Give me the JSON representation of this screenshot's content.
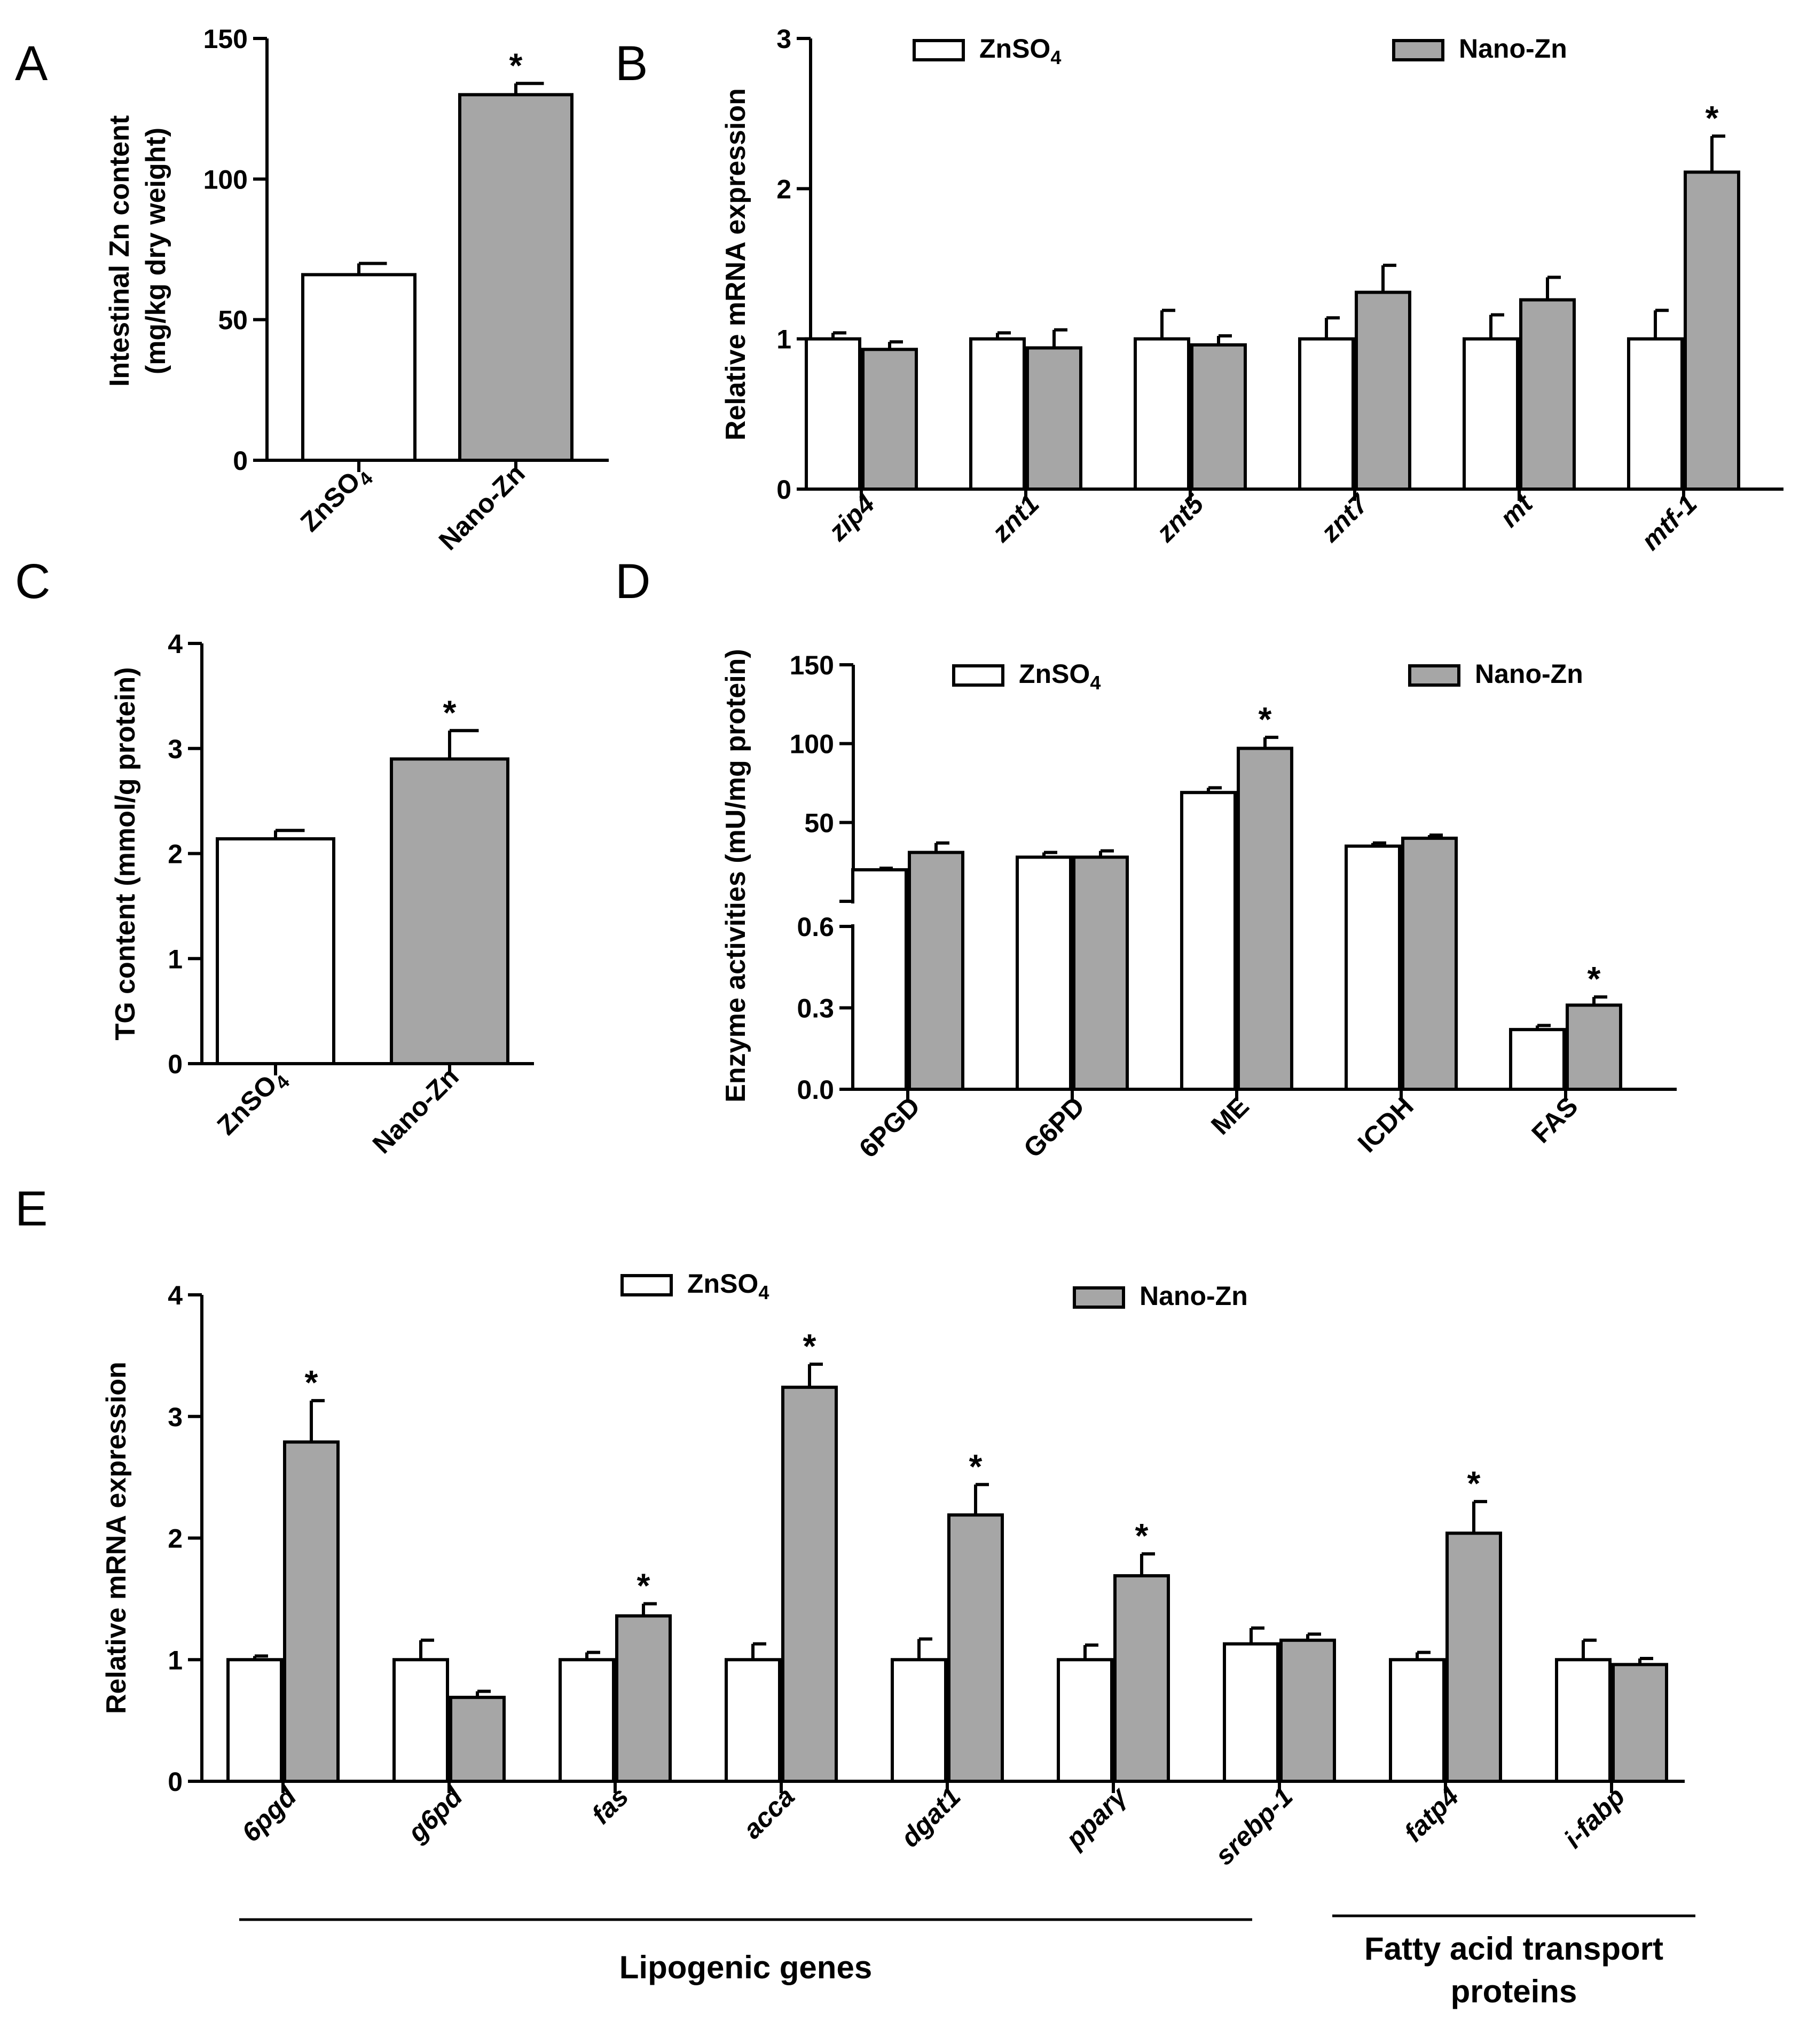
{
  "panels": [
    {
      "id": "A",
      "letter": "A",
      "type": "bar",
      "ylabel_lines": [
        "Intestinal Zn content",
        "(mg/kg dry weight)"
      ],
      "ylim": [
        0,
        150
      ],
      "yticks": [
        "0",
        "50",
        "100",
        "150"
      ],
      "categories": [
        "ZnSO4",
        "Nano-Zn"
      ],
      "category_colors": [
        "#ffffff",
        "#a6a6a6"
      ],
      "values": [
        66,
        130
      ],
      "errors": [
        4,
        4
      ],
      "significant": [
        false,
        true
      ],
      "star": "*"
    },
    {
      "id": "B",
      "letter": "B",
      "type": "bar",
      "ylabel": "Relative mRNA expression",
      "ylim": [
        0,
        3
      ],
      "yticks": [
        "0",
        "1",
        "2",
        "3"
      ],
      "categories": [
        "zip4",
        "znt1",
        "znt5",
        "znt7",
        "mt",
        "mtf-1"
      ],
      "legend": [
        "ZnSO4",
        "Nano-Zn"
      ],
      "series": [
        {
          "name": "ZnSO4",
          "color": "#ffffff",
          "values": [
            1.0,
            1.0,
            1.0,
            1.0,
            1.0,
            1.0
          ],
          "errors": [
            0.04,
            0.04,
            0.19,
            0.14,
            0.16,
            0.19
          ],
          "significant": [
            false,
            false,
            false,
            false,
            false,
            false
          ]
        },
        {
          "name": "Nano-Zn",
          "color": "#a6a6a6",
          "values": [
            0.93,
            0.94,
            0.96,
            1.31,
            1.26,
            2.11
          ],
          "errors": [
            0.05,
            0.12,
            0.06,
            0.18,
            0.15,
            0.24
          ],
          "significant": [
            false,
            false,
            false,
            false,
            false,
            true
          ]
        }
      ],
      "star": "*"
    },
    {
      "id": "C",
      "letter": "C",
      "type": "bar",
      "ylabel": "TG content (mmol/g protein)",
      "ylim": [
        0,
        4
      ],
      "yticks": [
        "0",
        "1",
        "2",
        "3",
        "4"
      ],
      "categories": [
        "ZnSO4",
        "Nano-Zn"
      ],
      "category_colors": [
        "#ffffff",
        "#a6a6a6"
      ],
      "values": [
        2.14,
        2.9
      ],
      "errors": [
        0.08,
        0.27
      ],
      "significant": [
        false,
        true
      ],
      "star": "*"
    },
    {
      "id": "D",
      "letter": "D",
      "type": "bar",
      "ylabel": "Enzyme activities (mU/mg protein)",
      "broken_axis": true,
      "ylim_lower": [
        0,
        0.6
      ],
      "yticks_lower": [
        "0.0",
        "0.3",
        "0.6"
      ],
      "ylim_upper": [
        0,
        150
      ],
      "yticks_upper": [
        "50",
        "100",
        "150"
      ],
      "categories": [
        "6PGD",
        "G6PD",
        "ME",
        "ICDH",
        "FAS"
      ],
      "legend": [
        "ZnSO4",
        "Nano-Zn"
      ],
      "series": [
        {
          "name": "ZnSO4",
          "color": "#ffffff",
          "values": [
            20,
            28,
            69,
            35,
            0.22
          ],
          "errors": [
            1,
            3,
            3,
            2,
            0.015
          ],
          "significant": [
            false,
            false,
            false,
            false,
            false
          ]
        },
        {
          "name": "Nano-Zn",
          "color": "#a6a6a6",
          "values": [
            31,
            28,
            97,
            40,
            0.31
          ],
          "errors": [
            6,
            4,
            7,
            2,
            0.03
          ],
          "significant": [
            false,
            false,
            true,
            false,
            true
          ]
        }
      ],
      "star": "*"
    },
    {
      "id": "E",
      "letter": "E",
      "type": "bar",
      "ylabel": "Relative mRNA expression",
      "ylim": [
        0,
        4
      ],
      "yticks": [
        "0",
        "1",
        "2",
        "3",
        "4"
      ],
      "categories": [
        "6pgd",
        "g6pd",
        "fas",
        "acca",
        "dgat1",
        "pparγ",
        "srebp-1",
        "fatp4",
        "i-fabp"
      ],
      "legend": [
        "ZnSO4",
        "Nano-Zn"
      ],
      "series": [
        {
          "name": "ZnSO4",
          "color": "#ffffff",
          "values": [
            1.0,
            1.0,
            1.0,
            1.0,
            1.0,
            1.0,
            1.13,
            1.0,
            1.0
          ],
          "errors": [
            0.03,
            0.16,
            0.06,
            0.13,
            0.17,
            0.12,
            0.13,
            0.06,
            0.16
          ],
          "significant": [
            false,
            false,
            false,
            false,
            false,
            false,
            false,
            false,
            false
          ]
        },
        {
          "name": "Nano-Zn",
          "color": "#a6a6a6",
          "values": [
            2.79,
            0.69,
            1.36,
            3.24,
            2.19,
            1.69,
            1.16,
            2.04,
            0.96
          ],
          "errors": [
            0.34,
            0.05,
            0.1,
            0.19,
            0.25,
            0.18,
            0.05,
            0.26,
            0.05
          ],
          "significant": [
            true,
            false,
            true,
            true,
            true,
            true,
            false,
            true,
            false
          ]
        }
      ],
      "groups": [
        {
          "label_lines": [
            "Lipogenic genes"
          ],
          "from": 0,
          "to": 6
        },
        {
          "label_lines": [
            "Fatty acid transport",
            "proteins"
          ],
          "from": 7,
          "to": 8
        }
      ],
      "star": "*"
    }
  ]
}
